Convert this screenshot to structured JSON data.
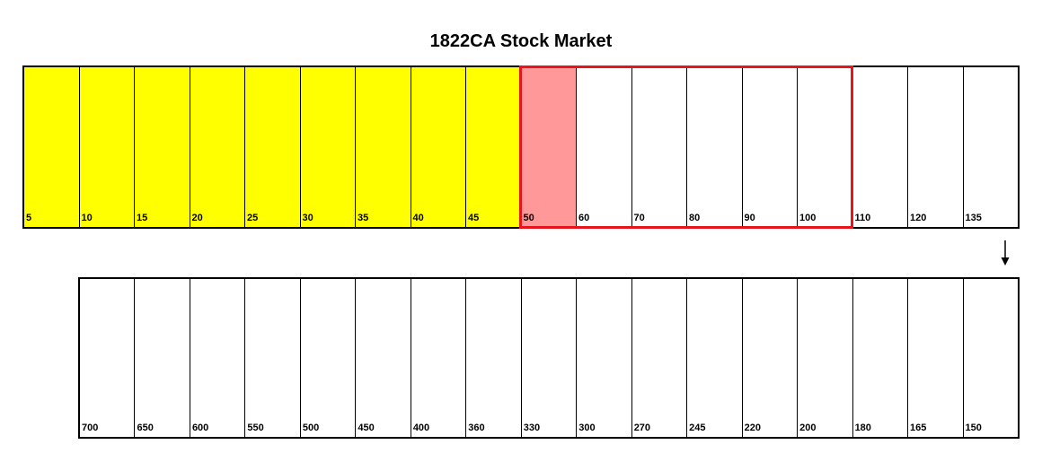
{
  "title": "1822CA Stock Market",
  "colors": {
    "yellow": "#ffff00",
    "pink": "#ff9999",
    "white": "#ffffff",
    "highlight": "#e8141c"
  },
  "top_track": [
    {
      "label": "5",
      "fill": "yellow"
    },
    {
      "label": "10",
      "fill": "yellow"
    },
    {
      "label": "15",
      "fill": "yellow"
    },
    {
      "label": "20",
      "fill": "yellow"
    },
    {
      "label": "25",
      "fill": "yellow"
    },
    {
      "label": "30",
      "fill": "yellow"
    },
    {
      "label": "35",
      "fill": "yellow"
    },
    {
      "label": "40",
      "fill": "yellow"
    },
    {
      "label": "45",
      "fill": "yellow"
    },
    {
      "label": "50",
      "fill": "pink"
    },
    {
      "label": "60",
      "fill": "white"
    },
    {
      "label": "70",
      "fill": "white"
    },
    {
      "label": "80",
      "fill": "white"
    },
    {
      "label": "90",
      "fill": "white"
    },
    {
      "label": "100",
      "fill": "white"
    },
    {
      "label": "110",
      "fill": "white"
    },
    {
      "label": "120",
      "fill": "white"
    },
    {
      "label": "135",
      "fill": "white"
    }
  ],
  "highlighted_range": [
    "50",
    "100"
  ],
  "bottom_track": [
    {
      "label": "700",
      "fill": "white"
    },
    {
      "label": "650",
      "fill": "white"
    },
    {
      "label": "600",
      "fill": "white"
    },
    {
      "label": "550",
      "fill": "white"
    },
    {
      "label": "500",
      "fill": "white"
    },
    {
      "label": "450",
      "fill": "white"
    },
    {
      "label": "400",
      "fill": "white"
    },
    {
      "label": "360",
      "fill": "white"
    },
    {
      "label": "330",
      "fill": "white"
    },
    {
      "label": "300",
      "fill": "white"
    },
    {
      "label": "270",
      "fill": "white"
    },
    {
      "label": "245",
      "fill": "white"
    },
    {
      "label": "220",
      "fill": "white"
    },
    {
      "label": "200",
      "fill": "white"
    },
    {
      "label": "180",
      "fill": "white"
    },
    {
      "label": "165",
      "fill": "white"
    },
    {
      "label": "150",
      "fill": "white"
    }
  ]
}
